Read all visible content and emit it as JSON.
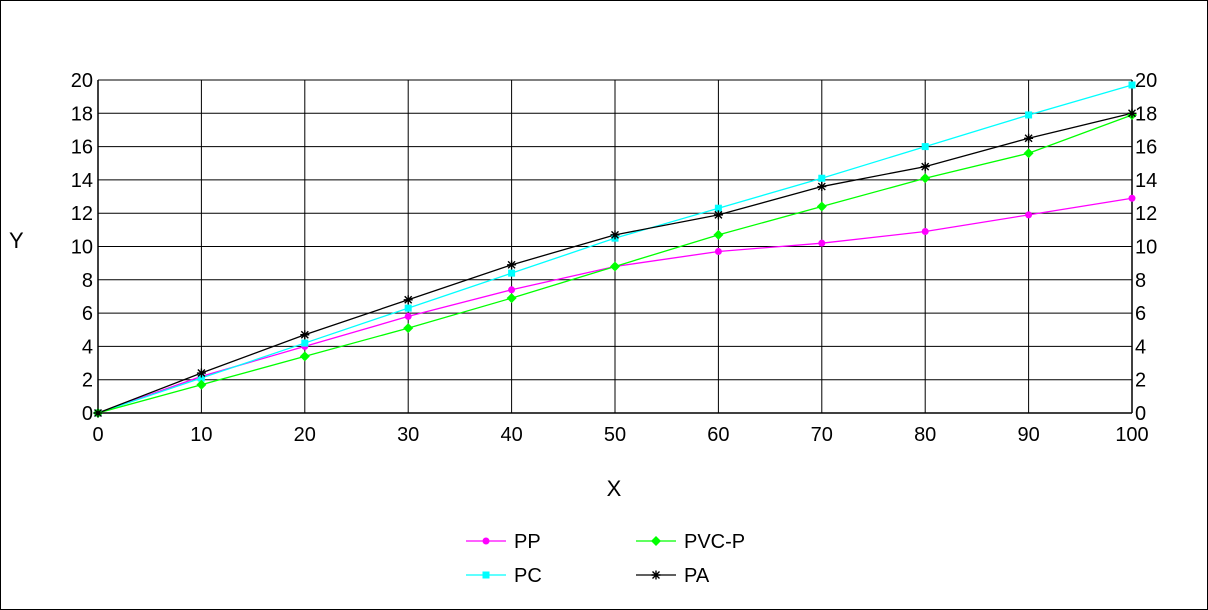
{
  "chart_data": {
    "type": "line",
    "title": "",
    "xlabel": "X",
    "ylabel": "Y",
    "xlim": [
      0,
      100
    ],
    "ylim": [
      0,
      20
    ],
    "x_ticks": [
      0,
      10,
      20,
      30,
      40,
      50,
      60,
      70,
      80,
      90,
      100
    ],
    "y_ticks": [
      0,
      2,
      4,
      6,
      8,
      10,
      12,
      14,
      16,
      18,
      20
    ],
    "grid": true,
    "secondary_y_axis": true,
    "legend_position": "bottom",
    "x": [
      0,
      10,
      20,
      30,
      40,
      50,
      60,
      70,
      80,
      90,
      100
    ],
    "series": [
      {
        "name": "PP",
        "color": "#ff00ff",
        "marker": "circle",
        "values": [
          0,
          2.2,
          4.0,
          5.8,
          7.4,
          8.8,
          9.7,
          10.2,
          10.9,
          11.9,
          12.9
        ]
      },
      {
        "name": "PC",
        "color": "#00ffff",
        "marker": "square",
        "values": [
          0,
          2.1,
          4.2,
          6.3,
          8.4,
          10.5,
          12.3,
          14.1,
          16.0,
          17.9,
          19.7
        ]
      },
      {
        "name": "PVC-P",
        "color": "#00ff00",
        "marker": "diamond",
        "values": [
          0,
          1.7,
          3.4,
          5.1,
          6.9,
          8.8,
          10.7,
          12.4,
          14.1,
          15.6,
          17.9
        ]
      },
      {
        "name": "PA",
        "color": "#000000",
        "marker": "star",
        "values": [
          0,
          2.4,
          4.7,
          6.8,
          8.9,
          10.7,
          11.9,
          13.6,
          14.8,
          16.5,
          18.0
        ]
      }
    ]
  }
}
